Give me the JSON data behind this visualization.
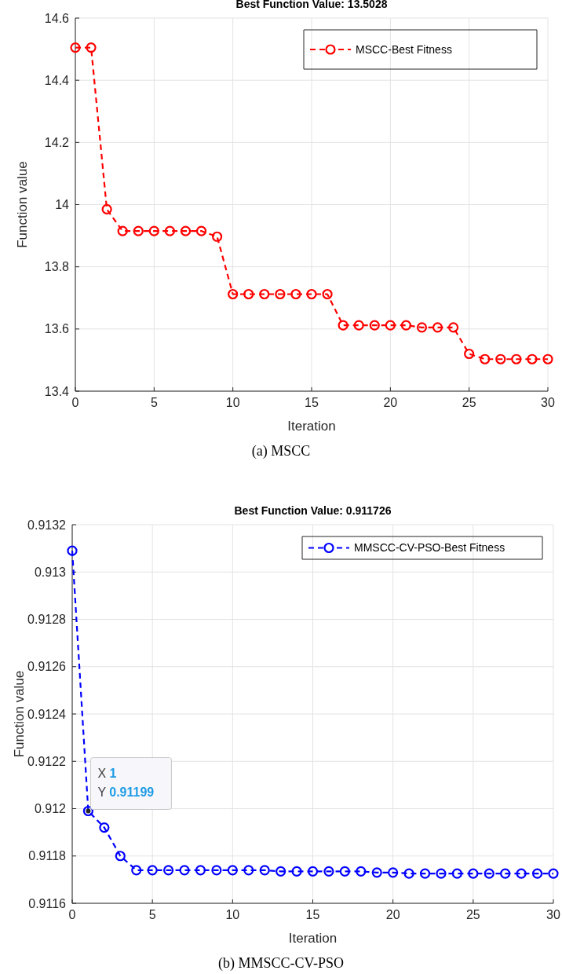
{
  "chart_data": [
    {
      "type": "line",
      "title": "Best Function Value: 13.5028",
      "xlabel": "Iteration",
      "ylabel": "Function value",
      "x": [
        0,
        1,
        2,
        3,
        4,
        5,
        6,
        7,
        8,
        9,
        10,
        11,
        12,
        13,
        14,
        15,
        16,
        17,
        18,
        19,
        20,
        21,
        22,
        23,
        24,
        25,
        26,
        27,
        28,
        29,
        30
      ],
      "series": [
        {
          "name": "MSCC-Best Fitness",
          "color": "#ff0000",
          "values": [
            14.505,
            14.505,
            13.985,
            13.915,
            13.915,
            13.915,
            13.915,
            13.915,
            13.915,
            13.897,
            13.712,
            13.712,
            13.712,
            13.712,
            13.712,
            13.712,
            13.712,
            13.612,
            13.612,
            13.612,
            13.612,
            13.612,
            13.605,
            13.605,
            13.605,
            13.52,
            13.503,
            13.503,
            13.503,
            13.503,
            13.503
          ]
        }
      ],
      "xlim": [
        0,
        30
      ],
      "xticks": [
        0,
        5,
        10,
        15,
        20,
        25,
        30
      ],
      "ylim": [
        13.4,
        14.6
      ],
      "yticks": [
        13.4,
        {
          "value": 13.6,
          "label": "13.6"
        },
        {
          "value": 13.8,
          "label": "13.8"
        },
        14,
        {
          "value": 14.2,
          "label": "14.2"
        },
        {
          "value": 14.4,
          "label": "14.4"
        },
        {
          "value": 14.6,
          "label": "14.6"
        }
      ],
      "grid": true,
      "legend": "top right",
      "marker": "circle",
      "line_style": "dashed",
      "annotations": [
        "(a) MSCC"
      ]
    },
    {
      "type": "line",
      "title": "Best Function Value: 0.911726",
      "xlabel": "Iteration",
      "ylabel": "Function value",
      "x": [
        0,
        1,
        2,
        3,
        4,
        5,
        6,
        7,
        8,
        9,
        10,
        11,
        12,
        13,
        14,
        15,
        16,
        17,
        18,
        19,
        20,
        21,
        22,
        23,
        24,
        25,
        26,
        27,
        28,
        29,
        30
      ],
      "series": [
        {
          "name": "MMSCC-CV-PSO-Best Fitness",
          "color": "#0000ff",
          "values": [
            0.91309,
            0.91199,
            0.91192,
            0.9118,
            0.91174,
            0.91174,
            0.91174,
            0.91174,
            0.91174,
            0.91174,
            0.91174,
            0.91174,
            0.91174,
            0.911735,
            0.911735,
            0.911735,
            0.911735,
            0.911735,
            0.911735,
            0.91173,
            0.91173,
            0.911726,
            0.911726,
            0.911726,
            0.911726,
            0.911726,
            0.911726,
            0.911726,
            0.911726,
            0.911726,
            0.911726
          ]
        }
      ],
      "xlim": [
        0,
        30
      ],
      "xticks": [
        0,
        5,
        10,
        15,
        20,
        25,
        30
      ],
      "ylim": [
        0.9116,
        0.9132
      ],
      "yticks": [
        0.9116,
        0.9118,
        0.912,
        0.9122,
        0.9124,
        0.9126,
        0.9128,
        0.913,
        0.9132
      ],
      "grid": true,
      "legend": "top right",
      "marker": "circle",
      "line_style": "dashed",
      "annotations": [
        {
          "text": "X 1\nY 0.91199",
          "x": 1,
          "y": 0.91199
        },
        "(b) MMSCC-CV-PSO"
      ]
    }
  ]
}
